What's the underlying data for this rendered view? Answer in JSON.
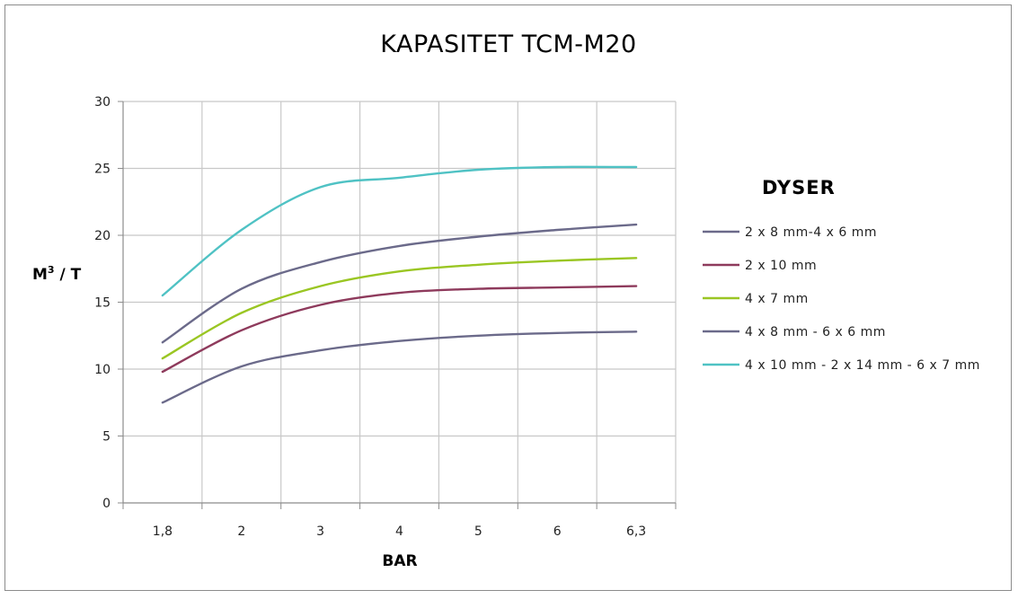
{
  "chart_data": {
    "type": "line",
    "title": "KAPASITET TCM-M20",
    "xlabel": "BAR",
    "ylabel_base": "M",
    "ylabel_sup": "3",
    "ylabel_rest": " / T",
    "categories": [
      "1,8",
      "2",
      "3",
      "4",
      "5",
      "6",
      "6,3"
    ],
    "yticks": [
      "0",
      "5",
      "10",
      "15",
      "20",
      "25",
      "30"
    ],
    "ylim": [
      0,
      30
    ],
    "grid": true,
    "legend_title": "DYSER",
    "legend_position": "right",
    "series": [
      {
        "name": "2 x 8 mm-4 x 6 mm",
        "color": "#6b6a8a",
        "values": [
          12.0,
          16.0,
          18.0,
          19.2,
          19.9,
          20.4,
          20.8
        ]
      },
      {
        "name": "2 x 10 mm",
        "color": "#8e3a5c",
        "values": [
          9.8,
          12.9,
          14.8,
          15.7,
          16.0,
          16.1,
          16.2
        ]
      },
      {
        "name": "4 x 7 mm",
        "color": "#9ac623",
        "values": [
          10.8,
          14.2,
          16.2,
          17.3,
          17.8,
          18.1,
          18.3
        ]
      },
      {
        "name": "4 x 8 mm - 6 x 6 mm",
        "color": "#6b6a8a",
        "values": [
          7.5,
          10.2,
          11.4,
          12.1,
          12.5,
          12.7,
          12.8
        ]
      },
      {
        "name": "4 x 10 mm - 2 x 14 mm - 6 x 7 mm",
        "color": "#4fc2c4",
        "values": [
          15.5,
          20.4,
          23.6,
          24.3,
          24.9,
          25.1,
          25.1
        ]
      }
    ]
  }
}
